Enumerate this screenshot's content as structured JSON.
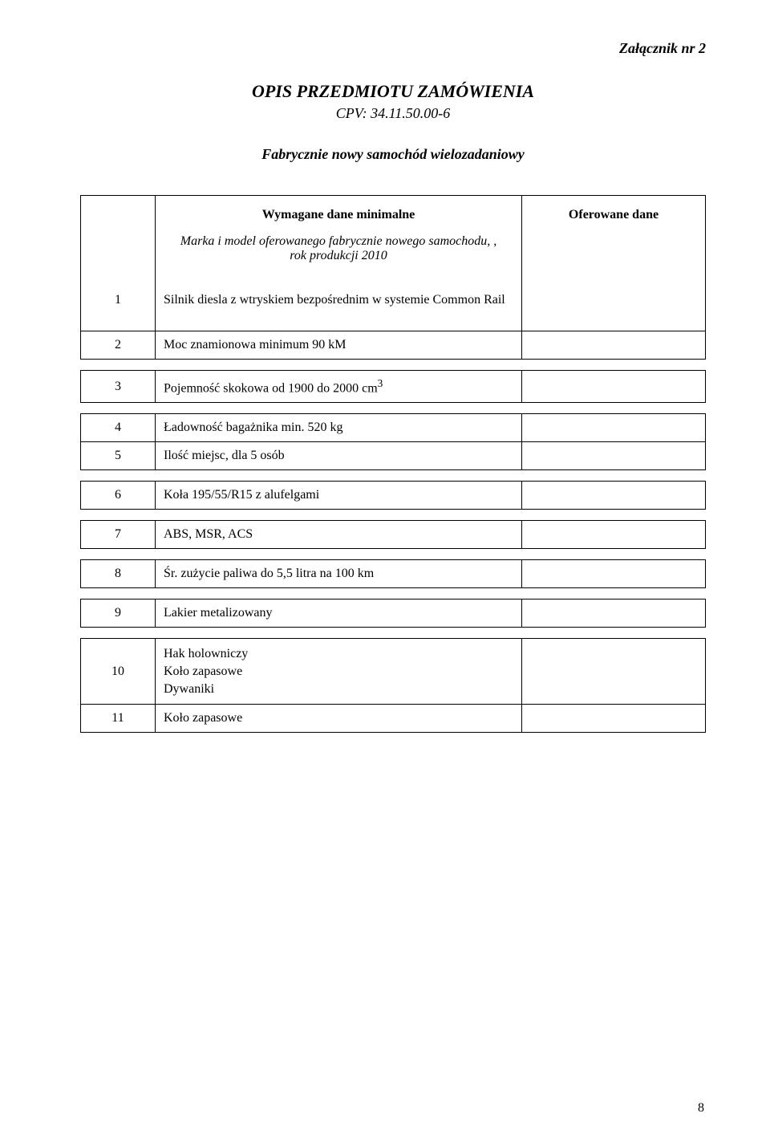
{
  "attachment_label": "Załącznik nr 2",
  "title": "OPIS PRZEDMIOTU ZAMÓWIENIA",
  "cpv_line": "CPV: 34.11.50.00-6",
  "subtitle": "Fabrycznie nowy samochód wielozadaniowy",
  "header_minimal": "Wymagane dane minimalne",
  "header_offered": "Oferowane dane",
  "model_line": "Marka i model oferowanego fabrycznie nowego samochodu, , rok produkcji 2010",
  "rows": {
    "r1": {
      "num": "1",
      "text": "Silnik diesla z wtryskiem bezpośrednim w systemie Common Rail"
    },
    "r2": {
      "num": "2",
      "text": "Moc znamionowa minimum  90 kM"
    },
    "r3": {
      "num": "3",
      "text_pre": "Pojemność skokowa od 1900 do 2000 cm",
      "sup": "3"
    },
    "r4": {
      "num": "4",
      "text": "Ładowność bagażnika min. 520 kg"
    },
    "r5": {
      "num": "5",
      "text": "Ilość miejsc, dla 5 osób"
    },
    "r6": {
      "num": "6",
      "text": "Koła 195/55/R15 z alufelgami"
    },
    "r7": {
      "num": "7",
      "text": "ABS, MSR, ACS"
    },
    "r8": {
      "num": "8",
      "text": "Śr. zużycie paliwa do 5,5 litra na 100 km"
    },
    "r9": {
      "num": "9",
      "text": "Lakier metalizowany"
    },
    "r10": {
      "num": "10",
      "line1": "Hak holowniczy",
      "line2": "Koło zapasowe",
      "line3": "Dywaniki"
    },
    "r11": {
      "num": "11",
      "text": "Koło zapasowe"
    }
  },
  "page_number": "8",
  "colors": {
    "text": "#000000",
    "background": "#ffffff",
    "border": "#000000"
  },
  "fonts": {
    "family": "Times New Roman",
    "body_size_pt": 12,
    "title_size_pt": 16
  }
}
